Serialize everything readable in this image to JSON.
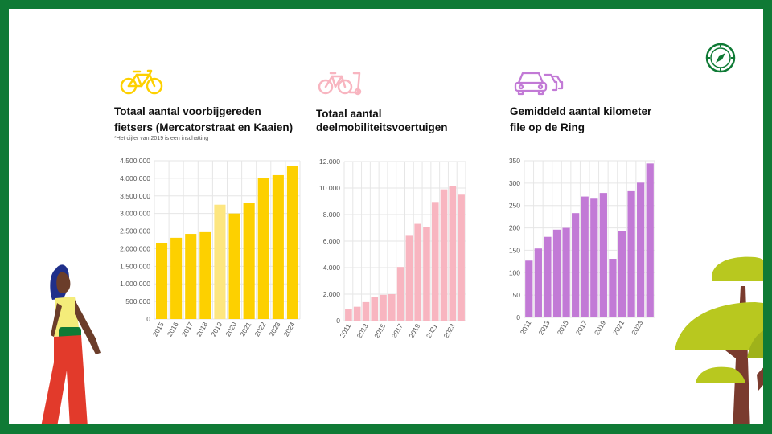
{
  "colors": {
    "frame": "#0f7a35",
    "yellow": "#fdd000",
    "yellow_light": "#fde680",
    "pink": "#f8b5c0",
    "purple": "#c27ad6",
    "grid": "#e6e6e6",
    "tick": "#555555"
  },
  "icons": {
    "compass": "compass-icon",
    "bike": "bicycle-icon",
    "shared": "shared-mobility-icon",
    "cars": "traffic-jam-icon"
  },
  "chart_data": [
    {
      "type": "bar",
      "title_line1": "Totaal aantal voorbijgereden",
      "title_line2": "fietsers (Mercatorstraat en Kaaien)",
      "note": "*Het cijfer van 2019 is een inschatting",
      "categories": [
        "2015",
        "2016",
        "2017",
        "2018",
        "2019",
        "2020",
        "2021",
        "2022",
        "2023",
        "2024"
      ],
      "values": [
        2170000,
        2310000,
        2420000,
        2470000,
        3250000,
        3000000,
        3310000,
        4020000,
        4090000,
        4340000
      ],
      "estimated_category": "2019",
      "ylim": [
        0,
        4500000
      ],
      "yticks": [
        "0",
        "500.000",
        "1.000.000",
        "1.500.000",
        "2.000.000",
        "2.500.000",
        "3.000.000",
        "3.500.000",
        "4.000.000",
        "4.500.000"
      ],
      "grid": true,
      "color": "#fdd000"
    },
    {
      "type": "bar",
      "title_line1": "Totaal aantal",
      "title_line2": "deelmobiliteitsvoertuigen",
      "categories": [
        "2011",
        "2012",
        "2013",
        "2014",
        "2015",
        "2016",
        "2017",
        "2018",
        "2019",
        "2020",
        "2021",
        "2022",
        "2023",
        "2024"
      ],
      "xtick_labels": [
        "2011",
        "",
        "2013",
        "",
        "2015",
        "",
        "2017",
        "",
        "2019",
        "",
        "2021",
        "",
        "2023",
        ""
      ],
      "values": [
        850,
        1050,
        1400,
        1800,
        1950,
        2000,
        4050,
        6400,
        7300,
        7050,
        8950,
        9900,
        10150,
        9500
      ],
      "ylim": [
        0,
        12000
      ],
      "yticks": [
        "0",
        "2.000",
        "4.000",
        "6.000",
        "8.000",
        "10.000",
        "12.000"
      ],
      "grid": true,
      "color": "#f8b5c0"
    },
    {
      "type": "bar",
      "title_line1": "Gemiddeld aantal kilometer",
      "title_line2": "file op de Ring",
      "categories": [
        "2011",
        "2012",
        "2013",
        "2014",
        "2015",
        "2016",
        "2017",
        "2018",
        "2019",
        "2020",
        "2021",
        "2022",
        "2023",
        "2024"
      ],
      "xtick_labels": [
        "2011",
        "",
        "2013",
        "",
        "2015",
        "",
        "2017",
        "",
        "2019",
        "",
        "2021",
        "",
        "2023",
        ""
      ],
      "values": [
        127,
        154,
        180,
        196,
        200,
        233,
        270,
        267,
        278,
        131,
        193,
        282,
        301,
        344
      ],
      "ylim": [
        0,
        350
      ],
      "yticks": [
        "0",
        "50",
        "100",
        "150",
        "200",
        "250",
        "300",
        "350"
      ],
      "grid": true,
      "color": "#c27ad6"
    }
  ]
}
